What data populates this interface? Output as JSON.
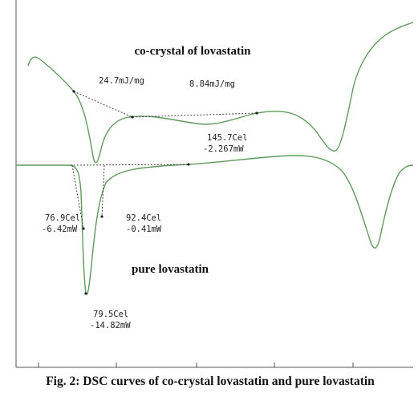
{
  "figure": {
    "caption": "Fig. 2: DSC curves of co-crystal lovastatin and pure lovastatin",
    "labels": {
      "co_crystal": "co-crystal of lovastatin",
      "pure": "pure lovastatin"
    },
    "annotations": [
      "24.7mJ/mg",
      "8.84mJ/mg",
      "145.7Cel",
      "-2.267mW",
      "76.9Cel",
      "-6.42mW",
      "92.4Cel",
      "-0.41mW",
      "79.5Cel",
      "-14.82mW"
    ]
  }
}
